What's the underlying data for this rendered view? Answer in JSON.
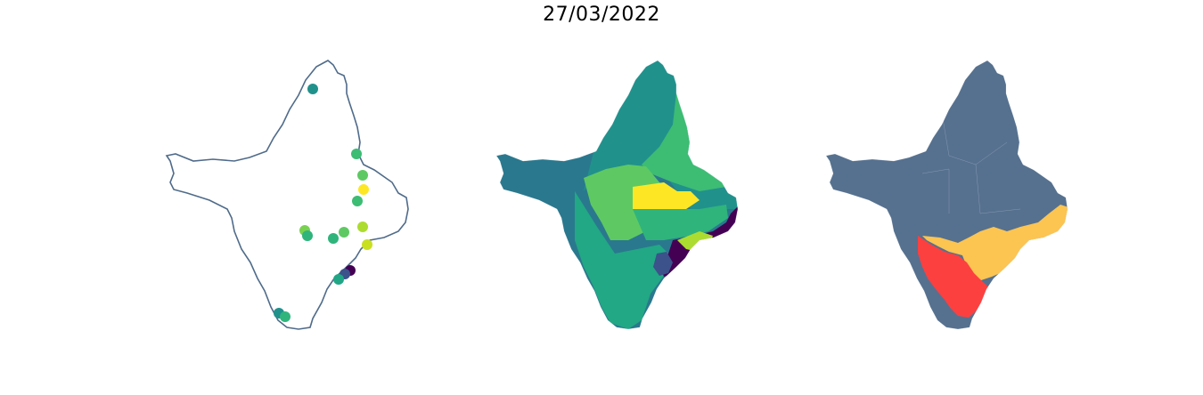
{
  "title": "27/03/2022",
  "colors": {
    "outline": "#4f6b8a",
    "region_base": "#56718f",
    "viridis": [
      "#440154",
      "#3b528b",
      "#21918c",
      "#2fb47c",
      "#5ec962",
      "#addc30",
      "#fde725"
    ],
    "risk_high": "#fc4040",
    "risk_medium": "#fcc451"
  },
  "maps": {
    "stations": {
      "points": [
        {
          "name": "station",
          "color": "#21918c"
        },
        {
          "name": "station",
          "color": "#3dbc74"
        },
        {
          "name": "station",
          "color": "#5ec962"
        },
        {
          "name": "station",
          "color": "#fde725"
        },
        {
          "name": "station",
          "color": "#3dbc74"
        },
        {
          "name": "station",
          "color": "#7ad151"
        },
        {
          "name": "station",
          "color": "#2fb47c"
        },
        {
          "name": "station",
          "color": "#2fb47c"
        },
        {
          "name": "station",
          "color": "#5ec962"
        },
        {
          "name": "station",
          "color": "#addc30"
        },
        {
          "name": "station",
          "color": "#c8e020"
        },
        {
          "name": "station",
          "color": "#440154"
        },
        {
          "name": "station",
          "color": "#3b528b"
        },
        {
          "name": "station",
          "color": "#21a685"
        },
        {
          "name": "station",
          "color": "#21918c"
        },
        {
          "name": "station",
          "color": "#2fb47c"
        }
      ]
    },
    "interpolated": {
      "description_colors": "viridis"
    },
    "risk": {
      "levels": [
        "base",
        "medium",
        "high"
      ]
    }
  }
}
